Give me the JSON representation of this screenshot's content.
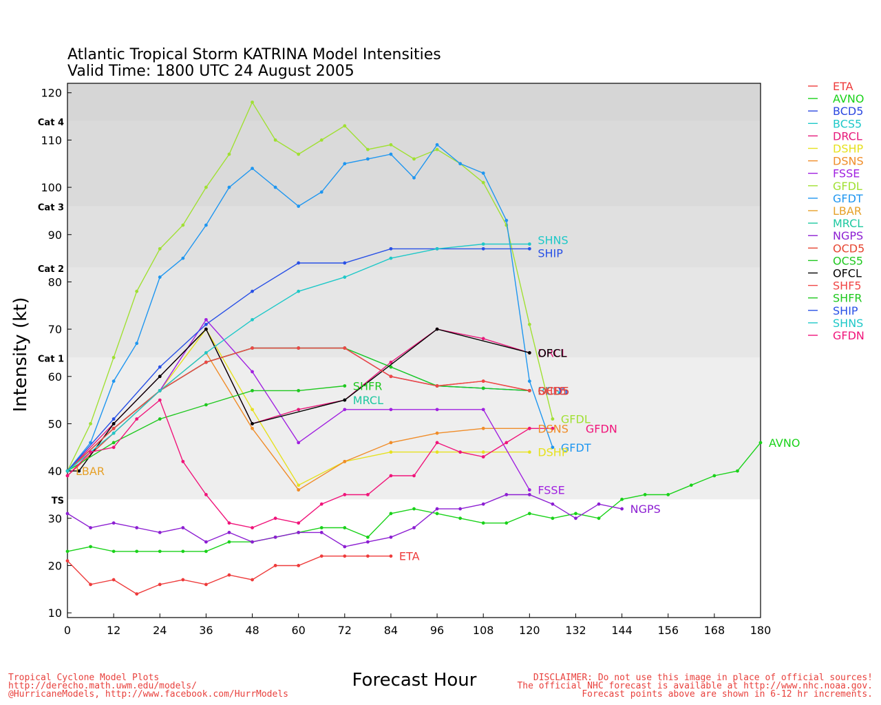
{
  "chart_data": {
    "type": "line",
    "title": "Atlantic Tropical Storm KATRINA Model Intensities",
    "subtitle": "Valid Time: 1800 UTC 24 August 2005",
    "xlabel": "Forecast Hour",
    "ylabel": "Intensity (kt)",
    "xlim": [
      0,
      180
    ],
    "ylim": [
      9,
      122
    ],
    "x_ticks": [
      0,
      12,
      24,
      36,
      48,
      60,
      72,
      84,
      96,
      108,
      120,
      132,
      144,
      156,
      168,
      180
    ],
    "y_ticks": [
      10,
      20,
      30,
      40,
      50,
      60,
      70,
      80,
      90,
      100,
      110,
      120
    ],
    "legend_position": "right-outside",
    "category_bands": [
      {
        "label": "TS",
        "from": 34,
        "to": 64,
        "color": "#eeeeee"
      },
      {
        "label": "Cat 1",
        "from": 64,
        "to": 83,
        "color": "#e6e6e6"
      },
      {
        "label": "Cat 2",
        "from": 83,
        "to": 96,
        "color": "#e0e0e0"
      },
      {
        "label": "Cat 3",
        "from": 96,
        "to": 114,
        "color": "#dadada"
      },
      {
        "label": "Cat 4",
        "from": 114,
        "to": 122,
        "color": "#d6d6d6"
      }
    ],
    "series": [
      {
        "name": "ETA",
        "color": "#ee3b3b",
        "show_end_label": true,
        "x": [
          0,
          6,
          12,
          18,
          24,
          30,
          36,
          42,
          48,
          54,
          60,
          66,
          72,
          78,
          84
        ],
        "y": [
          21,
          16,
          17,
          14,
          16,
          17,
          16,
          18,
          17,
          20,
          20,
          22,
          22,
          22,
          22
        ]
      },
      {
        "name": "AVNO",
        "color": "#19d219",
        "show_end_label": true,
        "x": [
          0,
          6,
          12,
          18,
          24,
          30,
          36,
          42,
          48,
          54,
          60,
          66,
          72,
          78,
          84,
          90,
          96,
          102,
          108,
          114,
          120,
          126,
          132,
          138,
          144,
          150,
          156,
          162,
          168,
          174,
          180
        ],
        "y": [
          23,
          24,
          23,
          23,
          23,
          23,
          23,
          25,
          25,
          26,
          27,
          28,
          28,
          26,
          31,
          32,
          31,
          30,
          29,
          29,
          31,
          30,
          31,
          30,
          34,
          35,
          35,
          37,
          39,
          40,
          46
        ]
      },
      {
        "name": "BCD5",
        "color": "#2b47e0",
        "show_end_label": false,
        "x": [
          0,
          12,
          24,
          36,
          48,
          60,
          72,
          84,
          96,
          108,
          120
        ],
        "y": [
          40,
          49,
          57,
          63,
          66,
          66,
          66,
          60,
          58,
          57.5,
          57
        ]
      },
      {
        "name": "BCS5",
        "color": "#1ec8c8",
        "show_end_label": false,
        "x": [
          0,
          12,
          24,
          36,
          48,
          60,
          72,
          84,
          96,
          108,
          120
        ],
        "y": [
          40,
          49,
          57,
          63,
          66,
          66,
          66,
          62,
          58,
          57.5,
          57
        ]
      },
      {
        "name": "DRCL",
        "color": "#e6197a",
        "show_end_label": false,
        "x": [
          0,
          12,
          24,
          36,
          48,
          60,
          72,
          84,
          96,
          108,
          120
        ],
        "y": [
          40,
          50,
          60,
          70,
          50,
          53,
          55,
          63,
          70,
          68,
          65
        ]
      },
      {
        "name": "DSHP",
        "color": "#e6e11e",
        "show_end_label": true,
        "x": [
          0,
          12,
          24,
          36,
          48,
          60,
          72,
          84,
          96,
          108,
          120
        ],
        "y": [
          40,
          49,
          57,
          70,
          53,
          37,
          42,
          44,
          44,
          44,
          44
        ]
      },
      {
        "name": "DSNS",
        "color": "#f08c28",
        "show_end_label": true,
        "x": [
          0,
          12,
          24,
          36,
          48,
          60,
          72,
          84,
          96,
          108,
          120
        ],
        "y": [
          40,
          49,
          57,
          65,
          49,
          36,
          42,
          46,
          48,
          49,
          49
        ]
      },
      {
        "name": "FSSE",
        "color": "#a020e0",
        "show_end_label": true,
        "x": [
          0,
          12,
          24,
          36,
          48,
          60,
          72,
          84,
          96,
          108,
          120
        ],
        "y": [
          40,
          49,
          57,
          72,
          61,
          46,
          53,
          53,
          53,
          53,
          36
        ]
      },
      {
        "name": "GFDL",
        "color": "#a0e032",
        "show_end_label": true,
        "x": [
          0,
          6,
          12,
          18,
          24,
          30,
          36,
          42,
          48,
          54,
          60,
          66,
          72,
          78,
          84,
          90,
          96,
          102,
          108,
          114,
          120,
          126
        ],
        "y": [
          40,
          50,
          64,
          78,
          87,
          92,
          100,
          107,
          118,
          110,
          107,
          110,
          113,
          108,
          109,
          106,
          108,
          105,
          101,
          92,
          71,
          51
        ]
      },
      {
        "name": "GFDT",
        "color": "#1e96f0",
        "show_end_label": true,
        "x": [
          0,
          6,
          12,
          18,
          24,
          30,
          36,
          42,
          48,
          54,
          60,
          66,
          72,
          78,
          84,
          90,
          96,
          102,
          108,
          114,
          120,
          126
        ],
        "y": [
          40,
          46,
          59,
          67,
          81,
          85,
          92,
          100,
          104,
          100,
          96,
          99,
          105,
          106,
          107,
          102,
          109,
          105,
          103,
          93,
          59,
          45
        ]
      },
      {
        "name": "LBAR",
        "color": "#e6a028",
        "show_end_label": true,
        "x": [
          0
        ],
        "y": [
          40
        ]
      },
      {
        "name": "MRCL",
        "color": "#1ec8a0",
        "show_end_label": true,
        "x": [
          72
        ],
        "y": [
          55
        ]
      },
      {
        "name": "NGPS",
        "color": "#8c1ed2",
        "show_end_label": true,
        "x": [
          0,
          6,
          12,
          18,
          24,
          30,
          36,
          42,
          48,
          54,
          60,
          66,
          72,
          78,
          84,
          90,
          96,
          102,
          108,
          114,
          120,
          126,
          132,
          138,
          144
        ],
        "y": [
          31,
          28,
          29,
          28,
          27,
          28,
          25,
          27,
          25,
          26,
          27,
          27,
          24,
          25,
          26,
          28,
          32,
          32,
          33,
          35,
          35,
          33,
          30,
          33,
          32
        ]
      },
      {
        "name": "OCD5",
        "color": "#e64632",
        "show_end_label": false,
        "x": [
          0,
          12,
          24,
          36,
          48,
          60,
          72,
          84,
          96,
          108,
          120
        ],
        "y": [
          39,
          48,
          57,
          63,
          66,
          66,
          66,
          60,
          58,
          59,
          57
        ]
      },
      {
        "name": "OCS5",
        "color": "#1ec81e",
        "show_end_label": false,
        "x": [
          0,
          12,
          24,
          36,
          48,
          60,
          72,
          84,
          96,
          108,
          120
        ],
        "y": [
          40,
          49,
          57,
          63,
          66,
          66,
          66,
          62,
          58,
          57.5,
          57
        ]
      },
      {
        "name": "OFCL",
        "color": "#000000",
        "show_end_label": true,
        "x": [
          0,
          3,
          12,
          24,
          36,
          48,
          72,
          96,
          120
        ],
        "y": [
          40,
          40,
          50,
          60,
          70,
          50,
          55,
          70,
          65
        ]
      },
      {
        "name": "SHF5",
        "color": "#f04646",
        "show_end_label": false,
        "x": [
          0,
          12,
          24,
          36,
          48,
          60,
          72,
          84,
          96,
          108,
          120
        ],
        "y": [
          40,
          49,
          57,
          63,
          66,
          66,
          66,
          60,
          58,
          59,
          57
        ]
      },
      {
        "name": "SHFR",
        "color": "#1ec81e",
        "show_end_label": true,
        "x": [
          0,
          12,
          24,
          36,
          48,
          60,
          72
        ],
        "y": [
          40,
          46,
          51,
          54,
          57,
          57,
          58
        ]
      },
      {
        "name": "SHIP",
        "color": "#2850e6",
        "show_end_label": true,
        "x": [
          0,
          12,
          24,
          36,
          48,
          60,
          72,
          84,
          96,
          108,
          120
        ],
        "y": [
          40,
          51,
          62,
          71,
          78,
          84,
          84,
          87,
          87,
          87,
          87
        ]
      },
      {
        "name": "SHNS",
        "color": "#1ec8c8",
        "show_end_label": true,
        "x": [
          0,
          12,
          24,
          36,
          48,
          60,
          72,
          84,
          96,
          108,
          120
        ],
        "y": [
          40,
          48,
          57,
          65,
          72,
          78,
          81,
          85,
          87,
          88,
          88
        ]
      },
      {
        "name": "GFDN",
        "color": "#f0147a",
        "show_end_label": true,
        "x": [
          0,
          6,
          12,
          18,
          24,
          30,
          36,
          42,
          48,
          54,
          60,
          66,
          72,
          78,
          84,
          90,
          96,
          102,
          108,
          114,
          120,
          126
        ],
        "y": [
          39,
          44,
          45,
          51,
          55,
          42,
          35,
          29,
          28,
          30,
          29,
          33,
          35,
          35,
          39,
          39,
          46,
          44,
          43,
          46,
          49,
          49
        ]
      }
    ],
    "end_labels": [
      {
        "text": "SHNS",
        "color": "#1ec8c8"
      },
      {
        "text": "SHIP",
        "color": "#2850e6"
      },
      {
        "text": "DRCL",
        "color": "#e6197a"
      },
      {
        "text": "OFCL",
        "color": "#000000"
      },
      {
        "text": "SHFR",
        "color": "#1ec81e"
      },
      {
        "text": "MRCL",
        "color": "#1ec8a0"
      },
      {
        "text": "BCD5",
        "color": "#2b47e0"
      },
      {
        "text": "BCS5",
        "color": "#1ec8c8"
      },
      {
        "text": "OCD5",
        "color": "#e64632"
      },
      {
        "text": "SHF5",
        "color": "#f04646"
      },
      {
        "text": "GFDL",
        "color": "#a0e032"
      },
      {
        "text": "DSNS",
        "color": "#f08c28"
      },
      {
        "text": "GFDN",
        "color": "#f0147a"
      },
      {
        "text": "GFDT",
        "color": "#1e96f0"
      },
      {
        "text": "DSHP",
        "color": "#e6e11e"
      },
      {
        "text": "FSSE",
        "color": "#a020e0"
      },
      {
        "text": "NGPS",
        "color": "#8c1ed2"
      },
      {
        "text": "AVNO",
        "color": "#19d219"
      },
      {
        "text": "ETA",
        "color": "#ee3b3b"
      },
      {
        "text": "LBAR",
        "color": "#e6a028"
      }
    ]
  },
  "footer": {
    "left_line1": "Tropical Cyclone Model Plots",
    "left_line2": "http://derecho.math.uwm.edu/models/",
    "left_line3": "@HurricaneModels, http://www.facebook.com/HurrModels",
    "right_line1": "DISCLAIMER: Do not use this image in place of official sources!",
    "right_line2": "The official NHC forecast is available at http://www.nhc.noaa.gov.",
    "right_line3": "Forecast points above are shown in 6-12 hr increments."
  }
}
